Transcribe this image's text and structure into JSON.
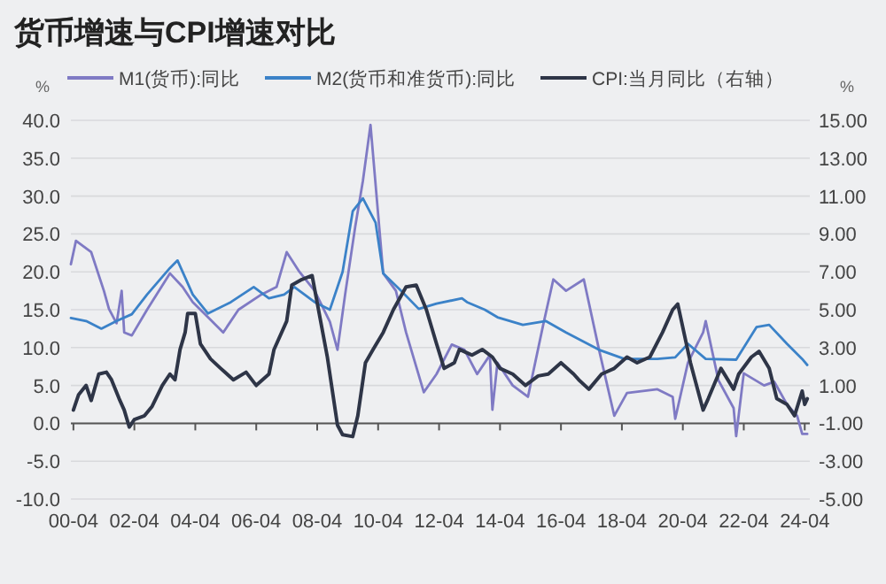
{
  "chart_data": {
    "type": "line",
    "title": "货币增速与CPI增速对比",
    "ylabel": "%",
    "y2label": "%",
    "legend": "top",
    "grid": "y",
    "line_style": "solid",
    "xlim": [
      "2000-03",
      "2024-06"
    ],
    "xticks": [
      {
        "value": "2000-04",
        "label": "00-04"
      },
      {
        "value": "2002-04",
        "label": "02-04"
      },
      {
        "value": "2004-04",
        "label": "04-04"
      },
      {
        "value": "2006-04",
        "label": "06-04"
      },
      {
        "value": "2008-04",
        "label": "08-04"
      },
      {
        "value": "2010-04",
        "label": "10-04"
      },
      {
        "value": "2012-04",
        "label": "12-04"
      },
      {
        "value": "2014-04",
        "label": "14-04"
      },
      {
        "value": "2016-04",
        "label": "16-04"
      },
      {
        "value": "2018-04",
        "label": "18-04"
      },
      {
        "value": "2020-04",
        "label": "20-04"
      },
      {
        "value": "2022-04",
        "label": "22-04"
      },
      {
        "value": "2024-04",
        "label": "24-04"
      }
    ],
    "ylim": [
      -10,
      40
    ],
    "yticks": [
      {
        "value": -10,
        "label": "-10.0"
      },
      {
        "value": -5,
        "label": "-5.0"
      },
      {
        "value": 0,
        "label": "0.0"
      },
      {
        "value": 5,
        "label": "5.0"
      },
      {
        "value": 10,
        "label": "10.0"
      },
      {
        "value": 15,
        "label": "15.0"
      },
      {
        "value": 20,
        "label": "20.0"
      },
      {
        "value": 25,
        "label": "25.0"
      },
      {
        "value": 30,
        "label": "30.0"
      },
      {
        "value": 35,
        "label": "35.0"
      },
      {
        "value": 40,
        "label": "40.0"
      }
    ],
    "y2lim": [
      -5,
      15
    ],
    "y2ticks": [
      {
        "value": -5,
        "label": "-5.00"
      },
      {
        "value": -3,
        "label": "-3.00"
      },
      {
        "value": -1,
        "label": "-1.00"
      },
      {
        "value": 1,
        "label": "1.00"
      },
      {
        "value": 3,
        "label": "3.00"
      },
      {
        "value": 5,
        "label": "5.00"
      },
      {
        "value": 7,
        "label": "7.00"
      },
      {
        "value": 9,
        "label": "9.00"
      },
      {
        "value": 11,
        "label": "11.00"
      },
      {
        "value": 13,
        "label": "13.00"
      },
      {
        "value": 15,
        "label": "15.00"
      }
    ],
    "series": [
      {
        "name": "M1(货币):同比",
        "color": "#7f7ac4",
        "x": [
          "2000-03",
          "2000-05",
          "2000-11",
          "2001-04",
          "2001-06",
          "2001-09",
          "2001-11",
          "2001-12",
          "2002-03",
          "2002-09",
          "2003-06",
          "2003-11",
          "2004-03",
          "2004-09",
          "2005-03",
          "2005-09",
          "2006-06",
          "2006-12",
          "2007-04",
          "2007-09",
          "2008-03",
          "2008-09",
          "2008-12",
          "2009-03",
          "2009-07",
          "2009-10",
          "2010-01",
          "2010-04",
          "2010-06",
          "2010-11",
          "2011-03",
          "2011-10",
          "2012-03",
          "2012-09",
          "2013-02",
          "2013-07",
          "2013-12",
          "2014-01",
          "2014-03",
          "2014-09",
          "2015-03",
          "2015-09",
          "2016-01",
          "2016-06",
          "2017-01",
          "2017-07",
          "2018-01",
          "2018-06",
          "2019-06",
          "2019-12",
          "2020-01",
          "2020-06",
          "2020-12",
          "2021-01",
          "2021-06",
          "2021-12",
          "2022-01",
          "2022-04",
          "2022-12",
          "2023-04",
          "2023-09",
          "2024-01",
          "2024-03",
          "2024-05"
        ],
        "values": [
          21,
          24.1,
          22.6,
          17.5,
          15.1,
          13.2,
          17.5,
          12,
          11.6,
          15,
          19.8,
          18,
          16,
          14,
          12,
          15,
          17,
          18,
          22.6,
          20,
          17.5,
          13.4,
          9.7,
          17,
          26,
          32,
          39.4,
          27.6,
          19.8,
          17.5,
          12,
          4.1,
          6.5,
          10.4,
          9.7,
          6.5,
          9,
          1.8,
          8,
          5,
          3.5,
          13,
          19,
          17.5,
          19,
          9.7,
          1,
          4,
          4.5,
          3.5,
          0.6,
          8,
          12,
          13.5,
          5.7,
          2,
          -1.7,
          6.6,
          5,
          5.5,
          2.5,
          1,
          -1.4,
          -1.4
        ]
      },
      {
        "name": "M2(货币和准货币):同比",
        "color": "#3b82c8",
        "x": [
          "2000-03",
          "2000-09",
          "2001-03",
          "2001-09",
          "2002-03",
          "2002-09",
          "2003-06",
          "2003-09",
          "2004-03",
          "2004-09",
          "2005-06",
          "2006-03",
          "2006-09",
          "2007-03",
          "2007-07",
          "2008-03",
          "2008-09",
          "2009-02",
          "2009-06",
          "2009-10",
          "2010-03",
          "2010-06",
          "2011-01",
          "2011-08",
          "2012-03",
          "2013-01",
          "2013-03",
          "2013-10",
          "2014-03",
          "2015-01",
          "2015-10",
          "2016-06",
          "2017-07",
          "2018-05",
          "2019-06",
          "2020-01",
          "2020-06",
          "2021-01",
          "2022-01",
          "2022-09",
          "2023-02",
          "2023-09",
          "2024-03",
          "2024-05"
        ],
        "values": [
          13.9,
          13.5,
          12.5,
          13.5,
          14.4,
          17,
          20.5,
          21.5,
          17,
          14.5,
          16,
          18,
          16.5,
          17,
          18,
          16,
          15,
          20,
          28,
          29.7,
          26.5,
          19.8,
          17.5,
          15.1,
          15.8,
          16.5,
          16,
          15,
          14,
          13,
          13.5,
          12,
          9.7,
          8.5,
          8.5,
          8.7,
          10.5,
          8.5,
          8.4,
          12.7,
          13,
          10.5,
          8.5,
          7.7
        ]
      },
      {
        "name": "CPI:当月同比（右轴）",
        "color": "#2e3547",
        "axis": "y2",
        "x": [
          "2000-04",
          "2000-06",
          "2000-09",
          "2000-11",
          "2001-02",
          "2001-05",
          "2001-07",
          "2001-10",
          "2001-12",
          "2002-02",
          "2002-04",
          "2002-08",
          "2002-11",
          "2003-03",
          "2003-06",
          "2003-08",
          "2003-10",
          "2003-12",
          "2004-01",
          "2004-04",
          "2004-06",
          "2004-10",
          "2005-02",
          "2005-07",
          "2005-12",
          "2006-04",
          "2006-09",
          "2006-11",
          "2007-04",
          "2007-06",
          "2007-10",
          "2008-02",
          "2008-08",
          "2008-12",
          "2009-02",
          "2009-06",
          "2009-08",
          "2009-11",
          "2010-02",
          "2010-06",
          "2010-10",
          "2011-03",
          "2011-07",
          "2011-11",
          "2012-03",
          "2012-06",
          "2012-10",
          "2012-12",
          "2013-05",
          "2013-09",
          "2014-01",
          "2014-04",
          "2014-09",
          "2015-02",
          "2015-07",
          "2015-11",
          "2016-04",
          "2016-09",
          "2016-11",
          "2017-03",
          "2017-08",
          "2018-01",
          "2018-06",
          "2018-10",
          "2019-03",
          "2019-08",
          "2019-12",
          "2020-02",
          "2020-07",
          "2020-12",
          "2021-02",
          "2021-07",
          "2021-12",
          "2022-02",
          "2022-07",
          "2022-10",
          "2023-02",
          "2023-05",
          "2023-09",
          "2023-12",
          "2024-03",
          "2024-04",
          "2024-05"
        ],
        "values": [
          -0.3,
          0.5,
          1.0,
          0.2,
          1.6,
          1.7,
          1.3,
          0.3,
          -0.3,
          -1.2,
          -0.8,
          -0.6,
          -0.1,
          1.0,
          1.6,
          1.3,
          2.9,
          3.8,
          4.8,
          4.8,
          3.2,
          2.4,
          1.9,
          1.3,
          1.7,
          1.0,
          1.6,
          2.9,
          4.4,
          6.3,
          6.6,
          6.8,
          2.5,
          -1.1,
          -1.6,
          -1.7,
          -0.6,
          2.2,
          2.9,
          3.8,
          5.0,
          6.2,
          6.3,
          5.0,
          3.2,
          1.9,
          2.2,
          2.9,
          2.6,
          2.9,
          2.5,
          1.9,
          1.6,
          1.0,
          1.5,
          1.6,
          2.2,
          1.6,
          1.3,
          0.8,
          1.6,
          1.9,
          2.5,
          2.2,
          2.5,
          3.8,
          5.0,
          5.3,
          2.2,
          -0.3,
          0.3,
          1.9,
          0.8,
          1.6,
          2.5,
          2.8,
          1.9,
          0.3,
          0,
          -0.6,
          0.7,
          0,
          0.3
        ]
      }
    ]
  }
}
